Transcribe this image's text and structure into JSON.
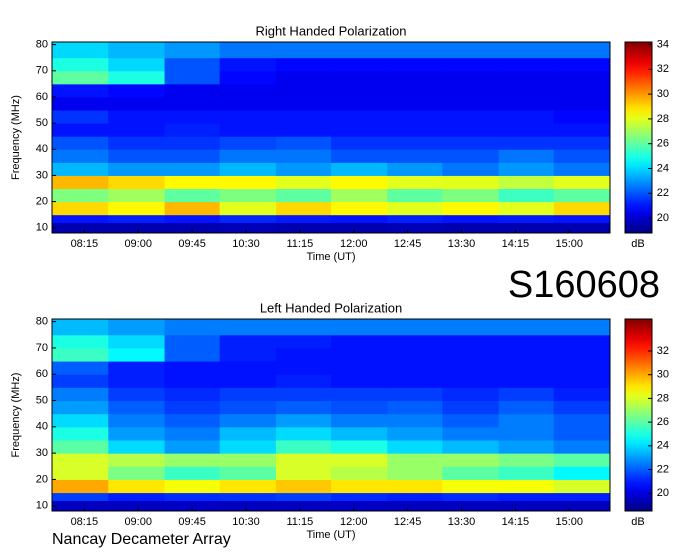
{
  "title": "S160608",
  "footer": "Nancay Decameter Array",
  "chart_data": [
    {
      "type": "heatmap",
      "title": "Right Handed Polarization",
      "xlabel": "Time (UT)",
      "ylabel": "Frequency (MHz)",
      "colormap": "jet",
      "colorbar_label": "dB",
      "xlim": [
        468,
        934
      ],
      "ylim": [
        8,
        81
      ],
      "xticks": [
        {
          "value": 495,
          "label": "08:15"
        },
        {
          "value": 540,
          "label": "09:00"
        },
        {
          "value": 585,
          "label": "09:45"
        },
        {
          "value": 630,
          "label": "10:30"
        },
        {
          "value": 675,
          "label": "11:15"
        },
        {
          "value": 720,
          "label": "12:00"
        },
        {
          "value": 765,
          "label": "12:45"
        },
        {
          "value": 810,
          "label": "13:30"
        },
        {
          "value": 855,
          "label": "14:15"
        },
        {
          "value": 900,
          "label": "15:00"
        }
      ],
      "yticks": [
        10,
        20,
        30,
        40,
        50,
        60,
        70,
        80
      ],
      "zlim": [
        18.8,
        34.2
      ],
      "zticks": [
        20,
        22,
        24,
        26,
        28,
        30,
        32,
        34
      ],
      "xbins": [
        468,
        515,
        562,
        608,
        655,
        701,
        748,
        794,
        841,
        887,
        934
      ],
      "ybins": [
        8,
        12,
        15,
        20,
        25,
        30,
        35,
        40,
        45,
        50,
        55,
        60,
        65,
        70,
        75,
        81
      ],
      "z": [
        [
          19.5,
          19.5,
          19.5,
          19.6,
          19.5,
          19.5,
          19.6,
          19.5,
          19.5,
          19.5
        ],
        [
          21,
          21.2,
          21,
          21.3,
          21.1,
          21,
          21.2,
          21,
          21.1,
          21
        ],
        [
          29,
          28.5,
          29.5,
          28,
          29,
          28.5,
          28,
          28.5,
          28,
          29
        ],
        [
          26.5,
          27,
          26,
          26.5,
          26,
          27,
          26,
          26.5,
          25.5,
          26
        ],
        [
          29.5,
          29,
          28.5,
          28.5,
          28,
          28.5,
          28,
          28,
          27.5,
          28
        ],
        [
          23.5,
          23,
          23,
          23.5,
          23,
          23.5,
          23,
          22.5,
          23,
          22.5
        ],
        [
          22.5,
          22,
          22,
          22.5,
          22.5,
          22,
          22,
          22,
          22.5,
          22
        ],
        [
          22,
          21.5,
          21.5,
          21.8,
          22,
          21.5,
          21.5,
          21.5,
          21.5,
          21.5
        ],
        [
          21,
          21,
          21.2,
          21,
          21,
          21,
          21,
          21,
          21,
          21
        ],
        [
          21.5,
          21,
          21,
          21,
          21,
          21,
          21,
          21,
          21,
          20.8
        ],
        [
          20.5,
          20.5,
          20.5,
          20.5,
          20.5,
          20.5,
          20.5,
          20.5,
          20.5,
          20.5
        ],
        [
          21,
          20.8,
          20.5,
          20.5,
          20.5,
          20.5,
          20.5,
          20.5,
          20.5,
          20.5
        ],
        [
          26,
          25,
          22,
          20.8,
          20.5,
          20.5,
          20.5,
          20.5,
          20.5,
          20.5
        ],
        [
          25,
          24,
          22,
          21,
          20.8,
          20.8,
          20.8,
          20.8,
          20.8,
          20.8
        ],
        [
          24,
          23.5,
          23,
          22.5,
          22.5,
          22.5,
          22.5,
          22.5,
          22.5,
          22.5
        ]
      ]
    },
    {
      "type": "heatmap",
      "title": "Left Handed Polarization",
      "xlabel": "Time (UT)",
      "ylabel": "Frequency (MHz)",
      "colormap": "jet",
      "colorbar_label": "dB",
      "xlim": [
        468,
        934
      ],
      "ylim": [
        8,
        81
      ],
      "xticks": [
        {
          "value": 495,
          "label": "08:15"
        },
        {
          "value": 540,
          "label": "09:00"
        },
        {
          "value": 585,
          "label": "09:45"
        },
        {
          "value": 630,
          "label": "10:30"
        },
        {
          "value": 675,
          "label": "11:15"
        },
        {
          "value": 720,
          "label": "12:00"
        },
        {
          "value": 765,
          "label": "12:45"
        },
        {
          "value": 810,
          "label": "13:30"
        },
        {
          "value": 855,
          "label": "14:15"
        },
        {
          "value": 900,
          "label": "15:00"
        }
      ],
      "yticks": [
        10,
        20,
        30,
        40,
        50,
        60,
        70,
        80
      ],
      "zlim": [
        18.5,
        34.7
      ],
      "zticks": [
        20,
        22,
        24,
        26,
        28,
        30,
        32
      ],
      "xbins": [
        468,
        515,
        562,
        608,
        655,
        701,
        748,
        794,
        841,
        887,
        934
      ],
      "ybins": [
        8,
        12,
        15,
        20,
        25,
        30,
        35,
        40,
        45,
        50,
        55,
        60,
        65,
        70,
        75,
        81
      ],
      "z": [
        [
          19.5,
          19.5,
          19.6,
          19.5,
          19.5,
          19.6,
          19.5,
          19.5,
          19.5,
          19.5
        ],
        [
          21.5,
          21,
          21.2,
          21.3,
          21.5,
          21.2,
          21,
          21.2,
          21,
          21
        ],
        [
          30,
          29,
          28.5,
          29,
          29.5,
          29,
          29,
          28.5,
          28.5,
          28
        ],
        [
          28,
          26.5,
          25.5,
          26,
          28,
          27.5,
          27,
          26,
          25.5,
          24.5
        ],
        [
          28,
          27.5,
          27,
          27,
          28,
          28,
          27,
          27,
          26.5,
          26
        ],
        [
          26,
          24,
          23,
          24,
          25.5,
          25,
          24,
          23.5,
          23,
          22.5
        ],
        [
          25,
          23,
          22.5,
          23.5,
          24,
          23.5,
          23,
          22.5,
          22.5,
          22
        ],
        [
          24,
          22.5,
          22,
          22.5,
          23,
          22.5,
          22.5,
          22,
          22.5,
          22
        ],
        [
          23,
          22,
          21.5,
          21.8,
          22,
          21.8,
          22,
          21.5,
          22,
          21.5
        ],
        [
          22.5,
          21.5,
          21.2,
          21.5,
          21.5,
          21.5,
          21.5,
          21.2,
          21.5,
          21
        ],
        [
          21.5,
          21,
          20.8,
          20.8,
          21,
          20.8,
          20.8,
          20.8,
          20.8,
          20.8
        ],
        [
          22,
          21,
          20.8,
          20.8,
          20.8,
          20.8,
          20.8,
          20.8,
          20.8,
          20.8
        ],
        [
          25.5,
          24.5,
          22,
          21,
          20.8,
          20.8,
          20.8,
          20.8,
          20.8,
          20.8
        ],
        [
          25,
          24,
          22,
          21,
          21,
          20.8,
          20.8,
          20.8,
          20.8,
          20.8
        ],
        [
          23.5,
          23,
          22.5,
          22.5,
          22.5,
          22.5,
          22.5,
          22.5,
          22.5,
          22.5
        ]
      ]
    }
  ]
}
